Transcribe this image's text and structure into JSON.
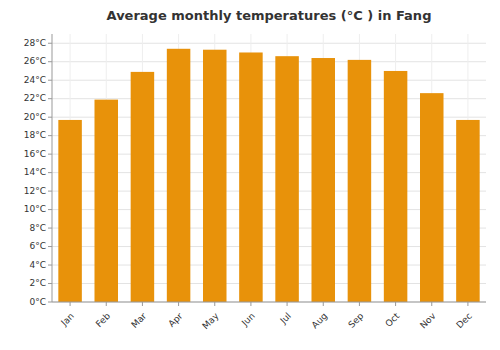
{
  "chart_data": {
    "type": "bar",
    "title": "Average monthly temperatures (°C ) in Fang",
    "categories": [
      "Jan",
      "Feb",
      "Mar",
      "Apr",
      "May",
      "Jun",
      "Jul",
      "Aug",
      "Sep",
      "Oct",
      "Nov",
      "Dec"
    ],
    "values": [
      19.7,
      21.9,
      24.9,
      27.4,
      27.3,
      27.0,
      26.6,
      26.4,
      26.2,
      25.0,
      22.6,
      19.7
    ],
    "color": "#E8920A",
    "ylim": [
      0,
      29
    ],
    "yticks": [
      {
        "value": 0,
        "label": "0°C"
      },
      {
        "value": 2,
        "label": "2°C"
      },
      {
        "value": 4,
        "label": "4°C"
      },
      {
        "value": 6,
        "label": "6°C"
      },
      {
        "value": 8,
        "label": "8°C"
      },
      {
        "value": 10,
        "label": "10°C"
      },
      {
        "value": 12,
        "label": "12°C"
      },
      {
        "value": 14,
        "label": "14°C"
      },
      {
        "value": 16,
        "label": "16°C"
      },
      {
        "value": 18,
        "label": "18°C"
      },
      {
        "value": 20,
        "label": "20°C"
      },
      {
        "value": 22,
        "label": "22°C"
      },
      {
        "value": 24,
        "label": "24°C"
      },
      {
        "value": 26,
        "label": "26°C"
      },
      {
        "value": 28,
        "label": "28°C"
      }
    ],
    "grid": true
  }
}
